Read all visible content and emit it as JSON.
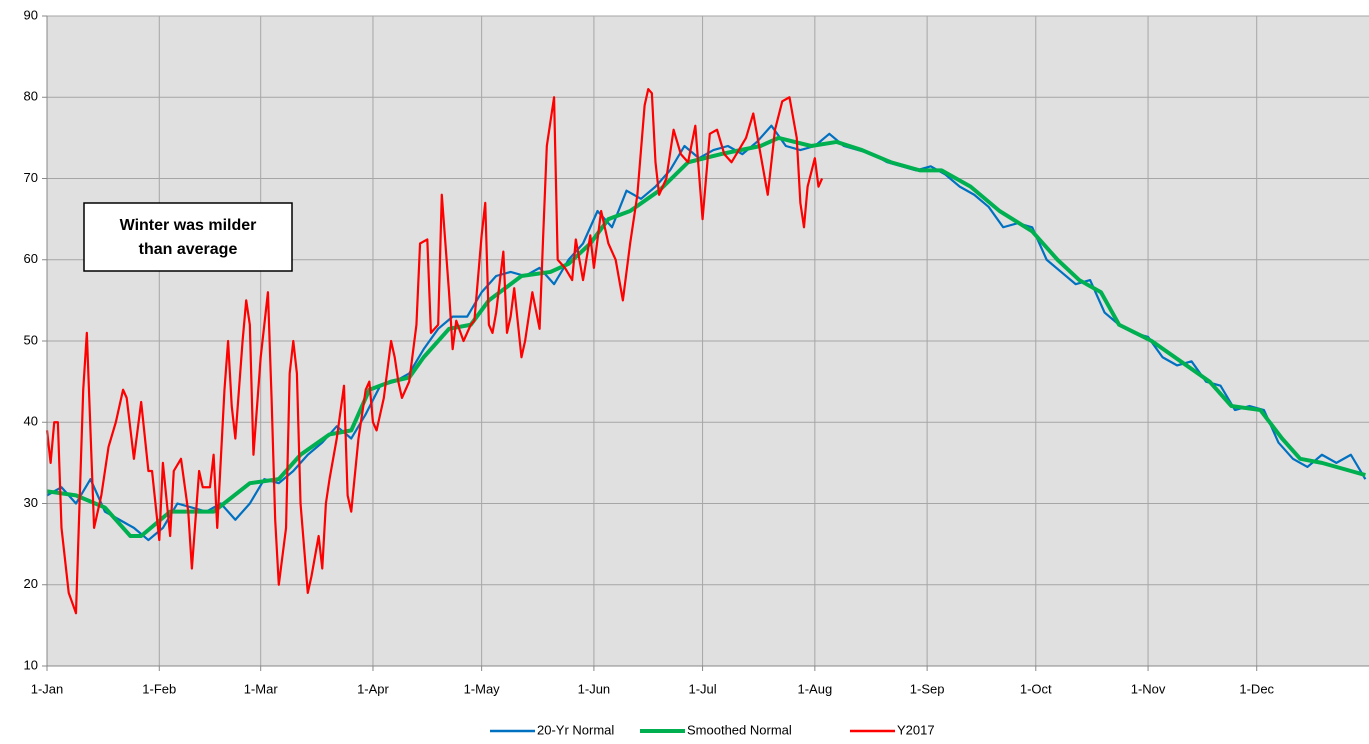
{
  "chart_data": {
    "type": "line",
    "annotations": [
      "Winter was milder",
      "than average"
    ],
    "xlim": [
      0,
      365
    ],
    "xticks": [
      {
        "value": 0,
        "label": "1-Jan"
      },
      {
        "value": 31,
        "label": "1-Feb"
      },
      {
        "value": 59,
        "label": "1-Mar"
      },
      {
        "value": 90,
        "label": "1-Apr"
      },
      {
        "value": 120,
        "label": "1-May"
      },
      {
        "value": 151,
        "label": "1-Jun"
      },
      {
        "value": 181,
        "label": "1-Jul"
      },
      {
        "value": 212,
        "label": "1-Aug"
      },
      {
        "value": 243,
        "label": "1-Sep"
      },
      {
        "value": 273,
        "label": "1-Oct"
      },
      {
        "value": 304,
        "label": "1-Nov"
      },
      {
        "value": 334,
        "label": "1-Dec"
      }
    ],
    "ylim": [
      10,
      90
    ],
    "yticks": [
      10,
      20,
      30,
      40,
      50,
      60,
      70,
      80,
      90
    ],
    "grid": true,
    "legend": "bottom",
    "series": [
      {
        "name": "20-Yr Normal",
        "color": "#0070c0",
        "x": [
          0,
          4,
          8,
          12,
          16,
          20,
          24,
          28,
          32,
          36,
          40,
          44,
          48,
          52,
          56,
          60,
          64,
          68,
          72,
          76,
          80,
          84,
          88,
          92,
          96,
          100,
          104,
          108,
          112,
          116,
          120,
          124,
          128,
          132,
          136,
          140,
          144,
          148,
          152,
          156,
          160,
          164,
          168,
          172,
          176,
          180,
          184,
          188,
          192,
          196,
          200,
          204,
          208,
          212,
          216,
          220,
          224,
          228,
          232,
          236,
          240,
          244,
          248,
          252,
          256,
          260,
          264,
          268,
          272,
          276,
          280,
          284,
          288,
          292,
          296,
          300,
          304,
          308,
          312,
          316,
          320,
          324,
          328,
          332,
          336,
          340,
          344,
          348,
          352,
          356,
          360,
          364
        ],
        "values": [
          31,
          32,
          30,
          33,
          29,
          28,
          27,
          25.5,
          27,
          30,
          29.5,
          29,
          30,
          28,
          30,
          33,
          32.5,
          34,
          36,
          37.5,
          39.5,
          38,
          41,
          44.5,
          45,
          46,
          49,
          51.5,
          53,
          53,
          56,
          58,
          58.5,
          58,
          59,
          57,
          60,
          62,
          66,
          64,
          68.5,
          67.5,
          69,
          71,
          74,
          72.5,
          73.5,
          74,
          73,
          74.5,
          76.5,
          74,
          73.5,
          74,
          75.5,
          74,
          73.5,
          73,
          72,
          71.5,
          71,
          71.5,
          70.5,
          69,
          68,
          66.5,
          64,
          64.5,
          64,
          60,
          58.5,
          57,
          57.5,
          53.5,
          52,
          51,
          50.5,
          48,
          47,
          47.5,
          45,
          44.5,
          41.5,
          42,
          41.5,
          37.5,
          35.5,
          34.5,
          36,
          35,
          36,
          33
        ]
      },
      {
        "name": "Smoothed Normal",
        "color": "#00b050",
        "x": [
          0,
          8,
          16,
          23,
          26,
          34,
          46,
          56,
          64,
          70,
          78,
          84,
          89,
          95,
          100,
          104,
          111,
          117,
          122,
          131,
          139,
          144,
          150,
          155,
          161,
          169,
          177,
          186,
          197,
          202,
          211,
          218,
          225,
          233,
          241,
          247,
          255,
          263,
          272,
          279,
          285,
          291,
          296,
          305,
          313,
          321,
          327,
          335,
          341,
          346,
          352,
          360,
          364
        ],
        "values": [
          31.5,
          31,
          29.5,
          26,
          26,
          29,
          29,
          32.5,
          33,
          36,
          38.5,
          39,
          44,
          45,
          45.5,
          48,
          51.5,
          52,
          55,
          58,
          58.5,
          59.5,
          62,
          65,
          66,
          68.5,
          72,
          73,
          74,
          75,
          74,
          74.5,
          73.5,
          72,
          71,
          71,
          69,
          66,
          63.5,
          60,
          57.5,
          56,
          52,
          50,
          47.5,
          45,
          42,
          41.5,
          38,
          35.5,
          35,
          34,
          33.5
        ]
      },
      {
        "name": "Y2017",
        "color": "#ff0000",
        "x": [
          0,
          1,
          2,
          3,
          4,
          6,
          8,
          10,
          11,
          13,
          15,
          17,
          19,
          21,
          22,
          24,
          26,
          28,
          29,
          31,
          32,
          34,
          35,
          37,
          39,
          40,
          42,
          43,
          45,
          46,
          47,
          49,
          50,
          51,
          52,
          54,
          55,
          56,
          57,
          59,
          61,
          62,
          63,
          64,
          66,
          67,
          68,
          69,
          70,
          72,
          73,
          75,
          76,
          77,
          78,
          80,
          82,
          83,
          84,
          86,
          88,
          89,
          90,
          91,
          93,
          95,
          96,
          97,
          98,
          100,
          102,
          103,
          105,
          106,
          108,
          109,
          111,
          112,
          113,
          115,
          117,
          118,
          120,
          121,
          122,
          123,
          124,
          126,
          127,
          128,
          129,
          131,
          132,
          134,
          136,
          137,
          138,
          140,
          141,
          143,
          145,
          146,
          148,
          150,
          151,
          153,
          155,
          157,
          159,
          161,
          163,
          165,
          166,
          167,
          168,
          169,
          171,
          173,
          175,
          177,
          179,
          181,
          183,
          185,
          187,
          189,
          193,
          195,
          199,
          201,
          203,
          205,
          207,
          208,
          209,
          210,
          212,
          213,
          214
        ],
        "values": [
          39,
          35,
          40,
          40,
          27,
          19,
          16.5,
          44,
          51,
          27,
          31,
          37,
          40,
          44,
          43,
          35.5,
          42.5,
          34,
          34,
          25.5,
          35,
          26,
          34,
          35.5,
          29,
          22,
          34,
          32,
          32,
          36,
          27,
          44,
          50,
          42,
          38,
          50,
          55,
          52,
          36,
          48,
          56,
          43,
          28,
          20,
          27,
          46,
          50,
          46,
          30,
          19,
          21,
          26,
          22,
          30,
          33,
          38,
          44.5,
          31,
          29,
          38,
          44,
          45,
          40,
          39,
          43,
          50,
          48,
          45,
          43,
          45,
          52,
          62,
          62.5,
          51,
          52,
          68,
          56,
          49,
          52.5,
          50,
          52,
          52.5,
          63,
          67,
          52,
          51,
          53.5,
          61,
          51,
          53,
          56.5,
          48,
          50,
          56,
          51.5,
          63,
          74,
          80,
          60,
          59,
          57.5,
          62.5,
          57.5,
          63,
          59,
          66,
          62,
          60,
          55,
          62,
          68,
          79,
          81,
          80.5,
          72,
          68,
          70,
          76,
          73,
          72,
          76.5,
          65,
          75.5,
          76,
          73,
          72,
          75,
          78,
          68,
          76,
          79.5,
          80,
          75,
          67,
          64,
          69,
          72.5,
          69,
          70
        ]
      }
    ]
  }
}
